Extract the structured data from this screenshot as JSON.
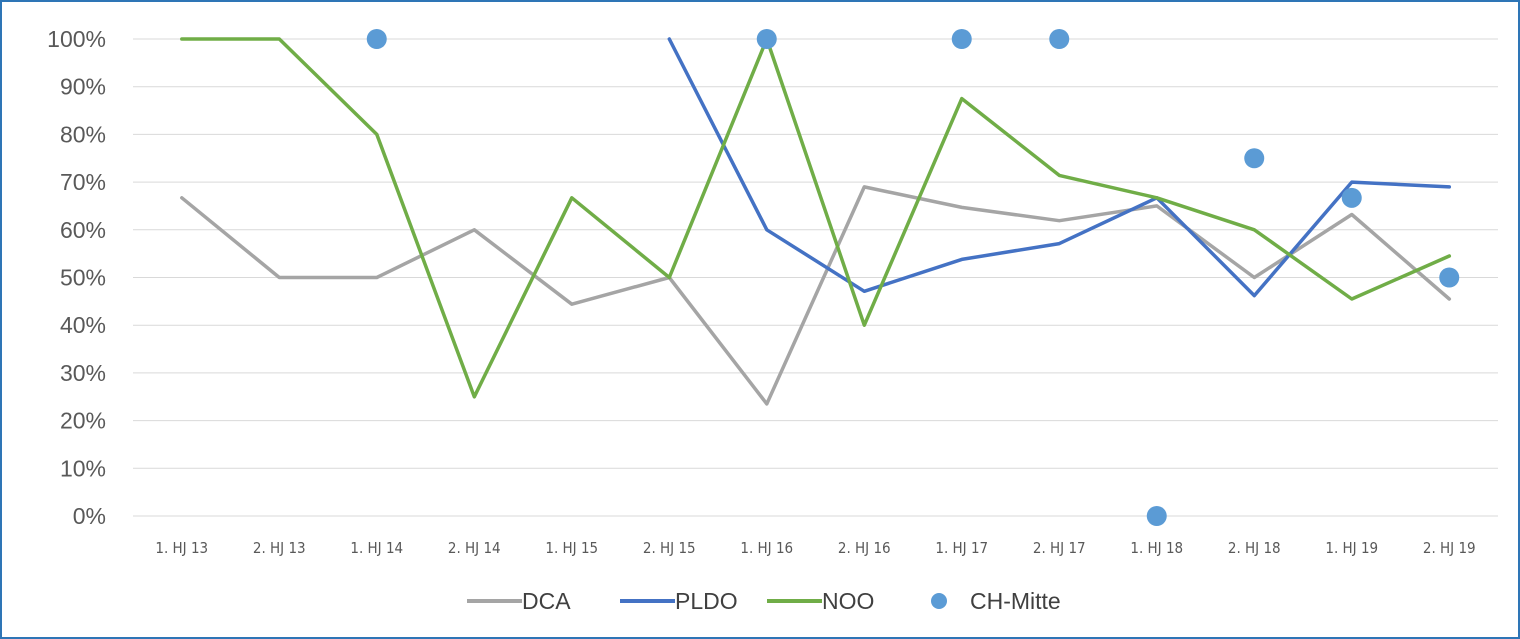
{
  "chart_data": {
    "type": "line",
    "title": "",
    "xlabel": "",
    "ylabel": "",
    "ylim": [
      0,
      1
    ],
    "y_ticks": [
      "0%",
      "10%",
      "20%",
      "30%",
      "40%",
      "50%",
      "60%",
      "70%",
      "80%",
      "90%",
      "100%"
    ],
    "grid": true,
    "legend_position": "bottom",
    "categories": [
      "1. HJ 13",
      "2. HJ 13",
      "1. HJ 14",
      "2. HJ 14",
      "1. HJ 15",
      "2. HJ 15",
      "1. HJ 16",
      "2. HJ 16",
      "1. HJ 17",
      "2. HJ 17",
      "1. HJ 18",
      "2. HJ 18",
      "1. HJ 19",
      "2. HJ 19"
    ],
    "series": [
      {
        "name": "DCA",
        "kind": "line",
        "color": "#a5a5a5",
        "values": [
          0.667,
          0.5,
          0.5,
          0.6,
          0.444,
          0.5,
          0.235,
          0.69,
          0.647,
          0.619,
          0.65,
          0.5,
          0.632,
          0.455
        ]
      },
      {
        "name": "PLDO",
        "kind": "line",
        "color": "#4472c4",
        "values": [
          null,
          null,
          null,
          null,
          null,
          1.0,
          0.6,
          0.471,
          0.538,
          0.571,
          0.667,
          0.462,
          0.7,
          0.69
        ]
      },
      {
        "name": "NOO",
        "kind": "line",
        "color": "#70ad47",
        "values": [
          1.0,
          1.0,
          0.8,
          0.25,
          0.667,
          0.5,
          1.0,
          0.4,
          0.875,
          0.714,
          0.667,
          0.6,
          0.455,
          0.545
        ]
      },
      {
        "name": "CH-Mitte",
        "kind": "marker",
        "color": "#5b9bd5",
        "values": [
          null,
          null,
          1.0,
          null,
          null,
          null,
          1.0,
          null,
          1.0,
          1.0,
          0.0,
          0.75,
          0.667,
          0.5
        ]
      }
    ]
  }
}
